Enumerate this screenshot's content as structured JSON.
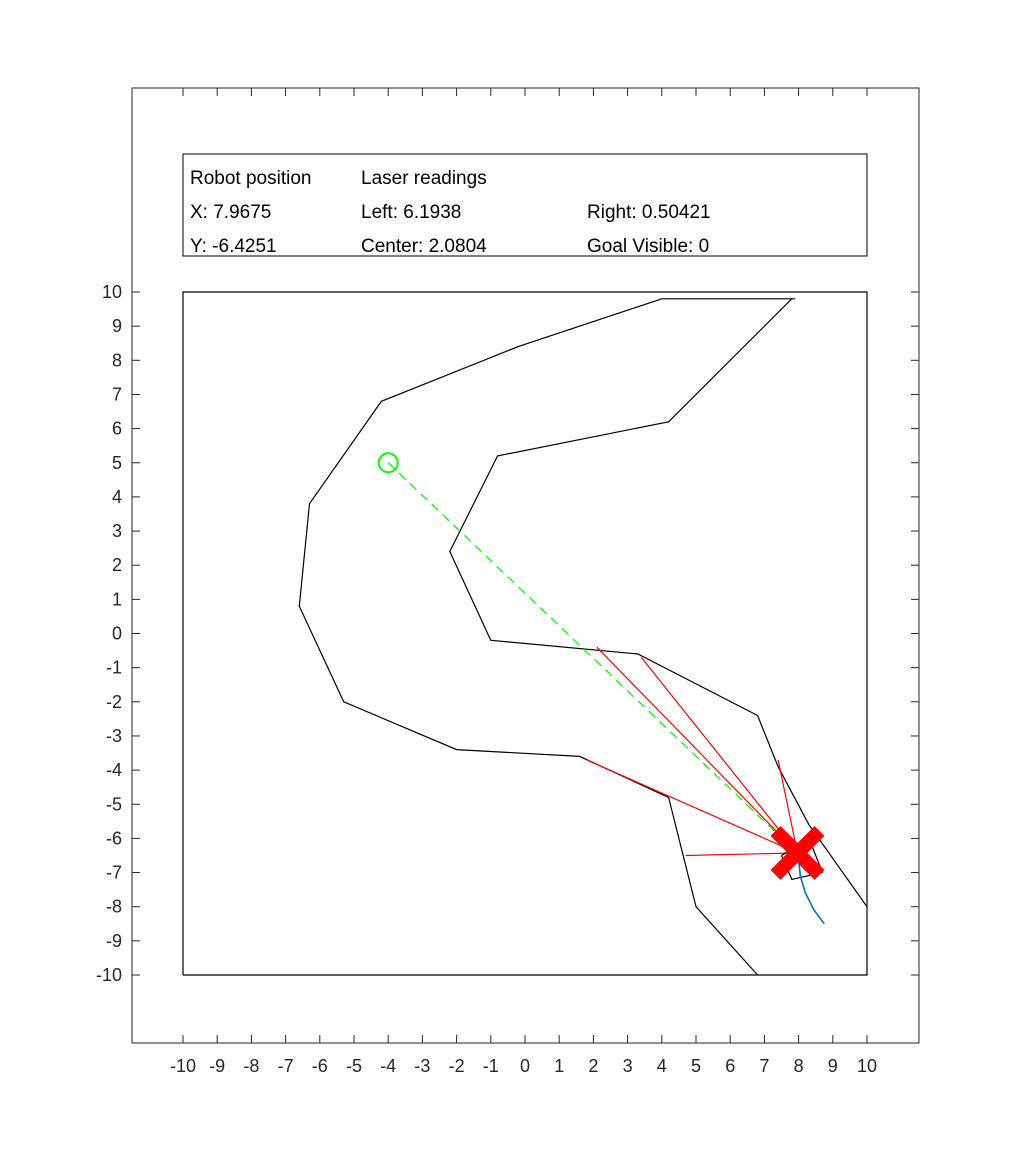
{
  "info_panel": {
    "robot_heading": "Robot position",
    "x_line": "X: 7.9675",
    "y_line": "Y: -6.4251",
    "laser_heading": "Laser readings",
    "left_line": "Left: 6.1938",
    "center_line": "Center: 2.0804",
    "right_line": "Right: 0.50421",
    "goal_line": "Goal Visible: 0"
  },
  "colors": {
    "walls": "#000000",
    "laser": "#ff0000",
    "goal": "#00ff00",
    "trajectory": "#0072bd",
    "robot_marker": "#ff0000"
  },
  "chart_data": {
    "type": "line",
    "xlim": [
      -10,
      10
    ],
    "ylim": [
      -10,
      10
    ],
    "xticks": [
      -10,
      -9,
      -8,
      -7,
      -6,
      -5,
      -4,
      -3,
      -2,
      -1,
      0,
      1,
      2,
      3,
      4,
      5,
      6,
      7,
      8,
      9,
      10
    ],
    "yticks": [
      -10,
      -9,
      -8,
      -7,
      -6,
      -5,
      -4,
      -3,
      -2,
      -1,
      0,
      1,
      2,
      3,
      4,
      5,
      6,
      7,
      8,
      9,
      10
    ],
    "grid": false,
    "boundary": [
      [
        -10,
        -10
      ],
      [
        10,
        -10
      ],
      [
        10,
        10
      ],
      [
        -10,
        10
      ],
      [
        -10,
        -10
      ]
    ],
    "outer_wall": [
      [
        7.9,
        9.8
      ],
      [
        4.0,
        9.8
      ],
      [
        -0.2,
        8.4
      ],
      [
        -4.2,
        6.8
      ],
      [
        -6.3,
        3.8
      ],
      [
        -6.6,
        0.8
      ],
      [
        -5.3,
        -2.0
      ],
      [
        -2.0,
        -3.4
      ],
      [
        1.6,
        -3.6
      ],
      [
        4.2,
        -4.8
      ],
      [
        5.0,
        -8.0
      ],
      [
        6.8,
        -10.0
      ]
    ],
    "inner_wall": [
      [
        7.8,
        9.8
      ],
      [
        4.2,
        6.2
      ],
      [
        -0.8,
        5.2
      ],
      [
        -2.2,
        2.4
      ],
      [
        -1.0,
        -0.2
      ],
      [
        3.3,
        -0.6
      ],
      [
        6.8,
        -2.4
      ],
      [
        7.4,
        -3.9
      ],
      [
        8.3,
        -5.6
      ],
      [
        10.0,
        -8.0
      ]
    ],
    "goal": {
      "x": -4.0,
      "y": 5.0
    },
    "robot": {
      "x": 7.9675,
      "y": -6.4251
    },
    "robot_body": [
      [
        7.5,
        -6.5
      ],
      [
        8.3,
        -6.0
      ],
      [
        8.7,
        -7.0
      ],
      [
        7.8,
        -7.2
      ]
    ],
    "trajectory": [
      [
        8.0,
        -6.6
      ],
      [
        8.05,
        -7.1
      ],
      [
        8.2,
        -7.6
      ],
      [
        8.45,
        -8.1
      ],
      [
        8.75,
        -8.5
      ]
    ],
    "goal_line": [
      [
        -4.0,
        5.0
      ],
      [
        7.9675,
        -6.4251
      ]
    ],
    "laser_rays": [
      [
        [
          7.9675,
          -6.4251
        ],
        [
          4.7,
          -6.5
        ]
      ],
      [
        [
          7.9675,
          -6.4251
        ],
        [
          1.8,
          -3.7
        ]
      ],
      [
        [
          7.9675,
          -6.4251
        ],
        [
          2.1,
          -0.4
        ]
      ],
      [
        [
          7.9675,
          -6.4251
        ],
        [
          3.4,
          -0.7
        ]
      ],
      [
        [
          7.9675,
          -6.4251
        ],
        [
          7.4,
          -3.7
        ]
      ]
    ]
  }
}
